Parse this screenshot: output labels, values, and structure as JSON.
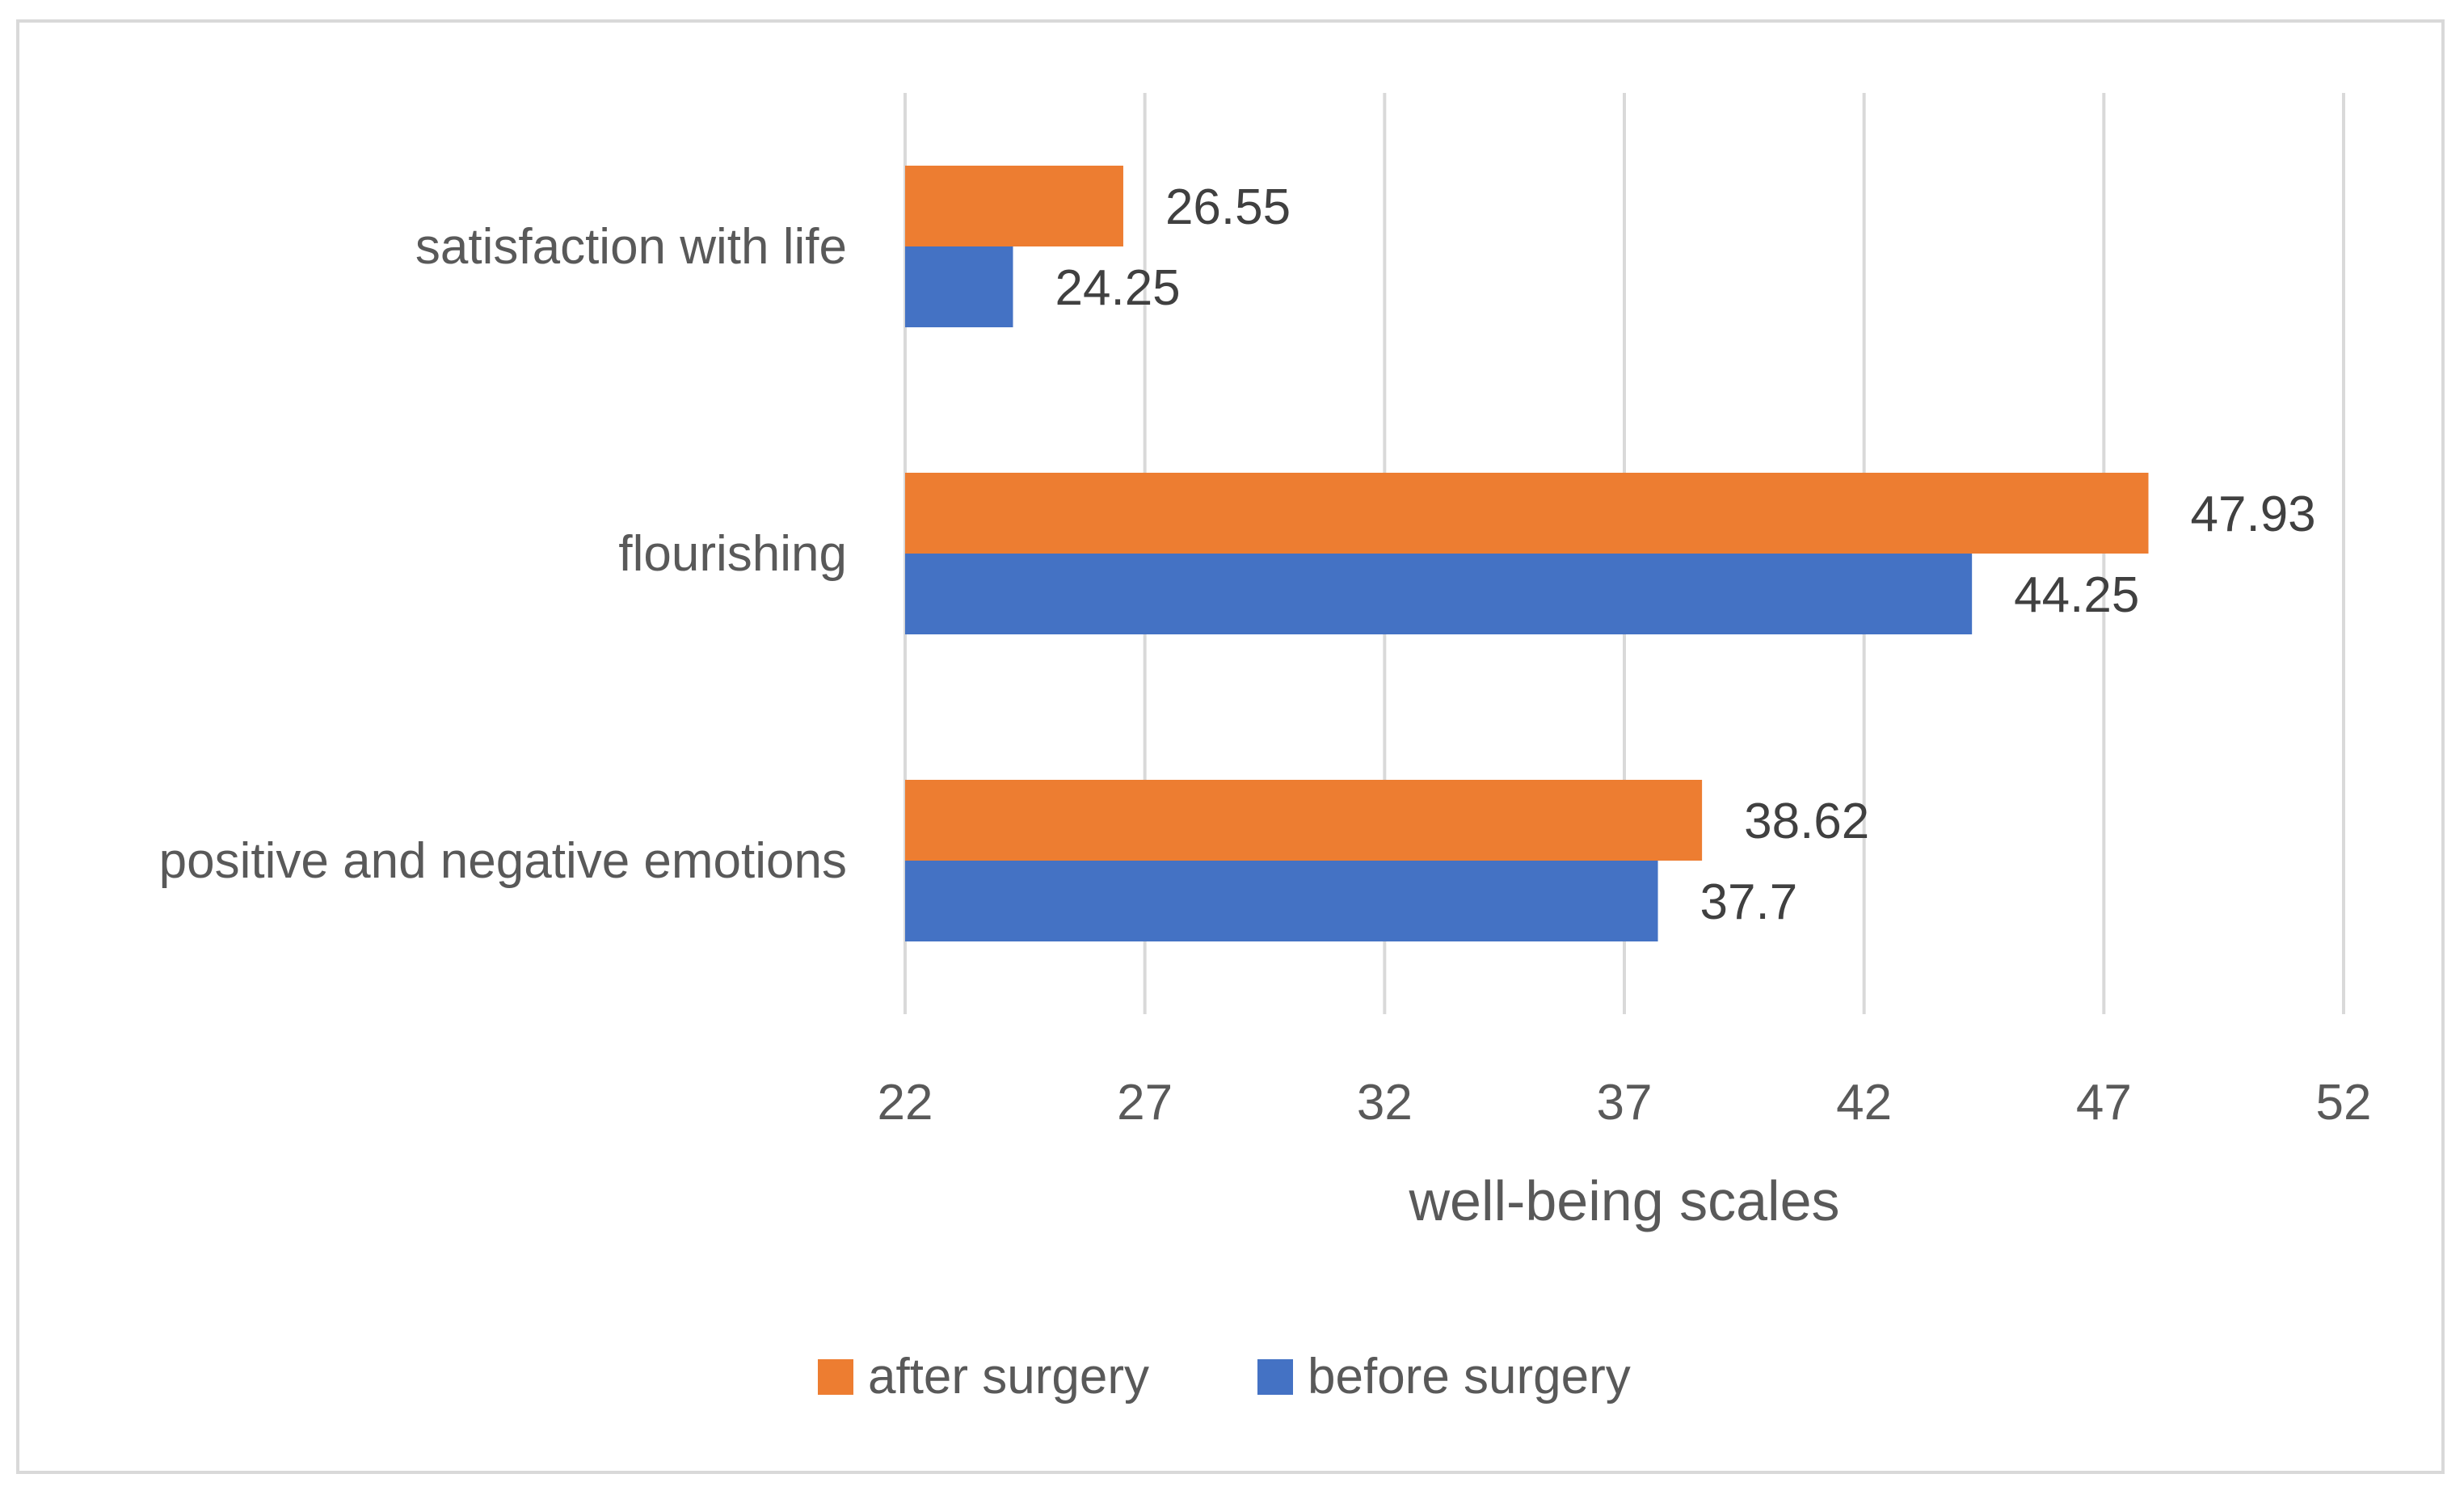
{
  "chart_data": {
    "type": "bar",
    "orientation": "horizontal",
    "categories": [
      "satisfaction with life",
      "flourishing",
      "positive and negative emotions"
    ],
    "series": [
      {
        "name": "after surgery",
        "color": "#ed7d31",
        "values": [
          26.55,
          47.93,
          38.62
        ],
        "labels": [
          "26.55",
          "47.93",
          "38.62"
        ]
      },
      {
        "name": "before surgery",
        "color": "#4472c4",
        "values": [
          24.25,
          44.25,
          37.7
        ],
        "labels": [
          "24.25",
          "44.25",
          "37.7"
        ]
      }
    ],
    "xlim": [
      22,
      52
    ],
    "xticks": [
      22,
      27,
      32,
      37,
      42,
      47,
      52
    ],
    "xlabel": "well-being scales",
    "ylabel": "",
    "title": "",
    "grid": true,
    "legend_position": "bottom",
    "gridline_color": "#d9d9d9"
  }
}
